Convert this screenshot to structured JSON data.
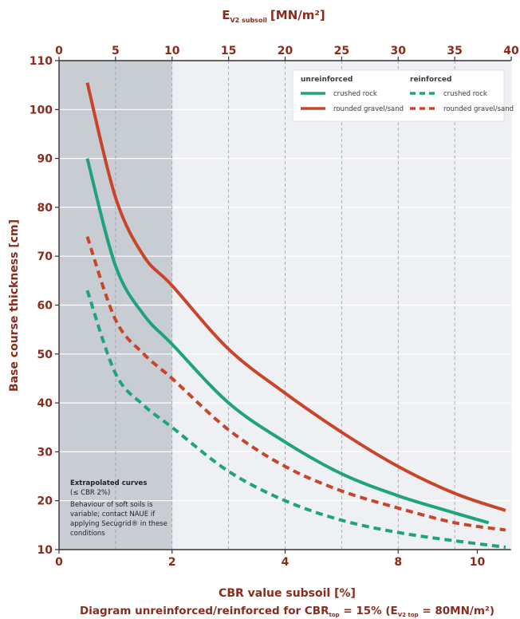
{
  "chart_data": {
    "type": "line",
    "title_top": "E",
    "title_top_sub": "V2 subsoil",
    "title_top_unit": "[MN/m²]",
    "xlabel": "CBR value subsoil [%]",
    "ylabel": "Base course thickness [cm]",
    "caption_prefix": "Diagram unreinforced/reinforced for CBR",
    "caption_sub1": "top",
    "caption_mid": " = 15% (E",
    "caption_sub2": "V2 top",
    "caption_suffix": " = 80MN/m²)",
    "x_bottom_ticks": [
      {
        "v": 0,
        "label": "0"
      },
      {
        "v": 2,
        "label": "2"
      },
      {
        "v": 4,
        "label": "4"
      },
      {
        "v": 8,
        "label": "8"
      },
      {
        "v": 10,
        "label": "10"
      }
    ],
    "x_top_ticks": [
      {
        "v": 0,
        "label": "0"
      },
      {
        "v": 5,
        "label": "5"
      },
      {
        "v": 10,
        "label": "10"
      },
      {
        "v": 15,
        "label": "15"
      },
      {
        "v": 20,
        "label": "20"
      },
      {
        "v": 25,
        "label": "25"
      },
      {
        "v": 30,
        "label": "30"
      },
      {
        "v": 35,
        "label": "35"
      },
      {
        "v": 40,
        "label": "40"
      }
    ],
    "y_ticks": [
      {
        "v": 10,
        "label": "10"
      },
      {
        "v": 20,
        "label": "20"
      },
      {
        "v": 30,
        "label": "30"
      },
      {
        "v": 40,
        "label": "40"
      },
      {
        "v": 50,
        "label": "50"
      },
      {
        "v": 60,
        "label": "60"
      },
      {
        "v": 70,
        "label": "70"
      },
      {
        "v": 80,
        "label": "80"
      },
      {
        "v": 90,
        "label": "90"
      },
      {
        "v": 100,
        "label": "100"
      },
      {
        "v": 110,
        "label": "110"
      }
    ],
    "ylim": [
      10,
      110
    ],
    "xlim_top": [
      0,
      40
    ],
    "grid": true,
    "legend_position": "top-right",
    "legend": {
      "group_unreinforced": "unreinforced",
      "group_reinforced": "reinforced",
      "crushed_rock": "crushed rock",
      "rounded_gravel": "rounded gravel/sand"
    },
    "colors": {
      "crushed_rock": "#1fa37a",
      "rounded_gravel": "#c8452a",
      "shade": "#c8ccd3",
      "plot_bg": "#eef0f4"
    },
    "extrapolated_region_top_x": [
      0,
      10
    ],
    "note": {
      "title": "Extrapolated curves",
      "lines": [
        "(≤ CBR 2%)",
        "Behaviour of soft soils is",
        "variable; contact NAUE if",
        "applying Secugrid® in these",
        "conditions"
      ]
    },
    "series": [
      {
        "name": "rounded gravel/sand",
        "group": "unreinforced",
        "dashed": false,
        "color": "#c8452a",
        "points": [
          [
            2.5,
            105.5
          ],
          [
            5,
            82
          ],
          [
            7.5,
            70
          ],
          [
            10,
            64
          ],
          [
            15,
            51
          ],
          [
            20,
            42
          ],
          [
            25,
            34
          ],
          [
            30,
            27
          ],
          [
            35,
            21.5
          ],
          [
            39.5,
            18
          ]
        ]
      },
      {
        "name": "crushed rock",
        "group": "unreinforced",
        "dashed": false,
        "color": "#1fa37a",
        "points": [
          [
            2.5,
            90
          ],
          [
            5,
            68
          ],
          [
            7.5,
            58
          ],
          [
            10,
            52
          ],
          [
            15,
            40
          ],
          [
            20,
            32
          ],
          [
            25,
            25.5
          ],
          [
            30,
            21
          ],
          [
            35,
            17.5
          ],
          [
            38,
            15.5
          ]
        ]
      },
      {
        "name": "rounded gravel/sand",
        "group": "reinforced",
        "dashed": true,
        "color": "#c8452a",
        "points": [
          [
            2.5,
            74
          ],
          [
            5,
            57
          ],
          [
            7.5,
            50
          ],
          [
            10,
            45
          ],
          [
            15,
            34.5
          ],
          [
            20,
            27
          ],
          [
            25,
            22
          ],
          [
            30,
            18.5
          ],
          [
            35,
            15.5
          ],
          [
            39.5,
            14
          ]
        ]
      },
      {
        "name": "crushed rock",
        "group": "reinforced",
        "dashed": true,
        "color": "#1fa37a",
        "points": [
          [
            2.5,
            63
          ],
          [
            5,
            46
          ],
          [
            7.5,
            39.5
          ],
          [
            10,
            35
          ],
          [
            15,
            26
          ],
          [
            20,
            20
          ],
          [
            25,
            16
          ],
          [
            30,
            13.5
          ],
          [
            35,
            11.8
          ],
          [
            39.5,
            10.5
          ]
        ]
      }
    ]
  }
}
